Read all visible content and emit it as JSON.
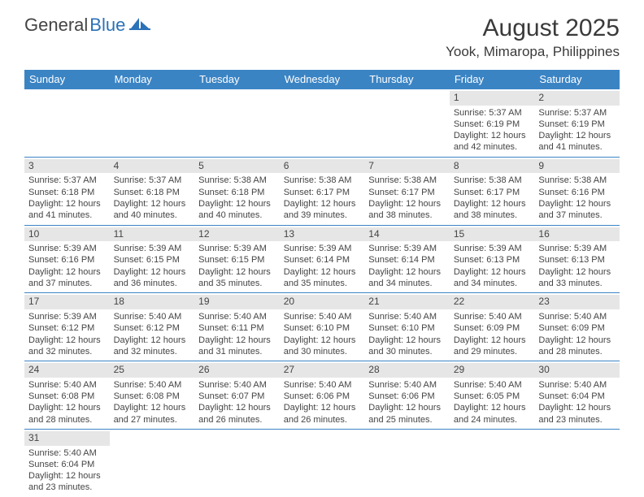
{
  "brand": {
    "part1": "General",
    "part2": "Blue"
  },
  "title": "August 2025",
  "location": "Yook, Mimaropa, Philippines",
  "colors": {
    "header_bg": "#3b84c4",
    "header_fg": "#ffffff",
    "daynum_bg": "#e6e6e6",
    "rule": "#3b84c4",
    "text": "#404040"
  },
  "day_names": [
    "Sunday",
    "Monday",
    "Tuesday",
    "Wednesday",
    "Thursday",
    "Friday",
    "Saturday"
  ],
  "weeks": [
    [
      null,
      null,
      null,
      null,
      null,
      {
        "n": "1",
        "sr": "Sunrise: 5:37 AM",
        "ss": "Sunset: 6:19 PM",
        "d1": "Daylight: 12 hours",
        "d2": "and 42 minutes."
      },
      {
        "n": "2",
        "sr": "Sunrise: 5:37 AM",
        "ss": "Sunset: 6:19 PM",
        "d1": "Daylight: 12 hours",
        "d2": "and 41 minutes."
      }
    ],
    [
      {
        "n": "3",
        "sr": "Sunrise: 5:37 AM",
        "ss": "Sunset: 6:18 PM",
        "d1": "Daylight: 12 hours",
        "d2": "and 41 minutes."
      },
      {
        "n": "4",
        "sr": "Sunrise: 5:37 AM",
        "ss": "Sunset: 6:18 PM",
        "d1": "Daylight: 12 hours",
        "d2": "and 40 minutes."
      },
      {
        "n": "5",
        "sr": "Sunrise: 5:38 AM",
        "ss": "Sunset: 6:18 PM",
        "d1": "Daylight: 12 hours",
        "d2": "and 40 minutes."
      },
      {
        "n": "6",
        "sr": "Sunrise: 5:38 AM",
        "ss": "Sunset: 6:17 PM",
        "d1": "Daylight: 12 hours",
        "d2": "and 39 minutes."
      },
      {
        "n": "7",
        "sr": "Sunrise: 5:38 AM",
        "ss": "Sunset: 6:17 PM",
        "d1": "Daylight: 12 hours",
        "d2": "and 38 minutes."
      },
      {
        "n": "8",
        "sr": "Sunrise: 5:38 AM",
        "ss": "Sunset: 6:17 PM",
        "d1": "Daylight: 12 hours",
        "d2": "and 38 minutes."
      },
      {
        "n": "9",
        "sr": "Sunrise: 5:38 AM",
        "ss": "Sunset: 6:16 PM",
        "d1": "Daylight: 12 hours",
        "d2": "and 37 minutes."
      }
    ],
    [
      {
        "n": "10",
        "sr": "Sunrise: 5:39 AM",
        "ss": "Sunset: 6:16 PM",
        "d1": "Daylight: 12 hours",
        "d2": "and 37 minutes."
      },
      {
        "n": "11",
        "sr": "Sunrise: 5:39 AM",
        "ss": "Sunset: 6:15 PM",
        "d1": "Daylight: 12 hours",
        "d2": "and 36 minutes."
      },
      {
        "n": "12",
        "sr": "Sunrise: 5:39 AM",
        "ss": "Sunset: 6:15 PM",
        "d1": "Daylight: 12 hours",
        "d2": "and 35 minutes."
      },
      {
        "n": "13",
        "sr": "Sunrise: 5:39 AM",
        "ss": "Sunset: 6:14 PM",
        "d1": "Daylight: 12 hours",
        "d2": "and 35 minutes."
      },
      {
        "n": "14",
        "sr": "Sunrise: 5:39 AM",
        "ss": "Sunset: 6:14 PM",
        "d1": "Daylight: 12 hours",
        "d2": "and 34 minutes."
      },
      {
        "n": "15",
        "sr": "Sunrise: 5:39 AM",
        "ss": "Sunset: 6:13 PM",
        "d1": "Daylight: 12 hours",
        "d2": "and 34 minutes."
      },
      {
        "n": "16",
        "sr": "Sunrise: 5:39 AM",
        "ss": "Sunset: 6:13 PM",
        "d1": "Daylight: 12 hours",
        "d2": "and 33 minutes."
      }
    ],
    [
      {
        "n": "17",
        "sr": "Sunrise: 5:39 AM",
        "ss": "Sunset: 6:12 PM",
        "d1": "Daylight: 12 hours",
        "d2": "and 32 minutes."
      },
      {
        "n": "18",
        "sr": "Sunrise: 5:40 AM",
        "ss": "Sunset: 6:12 PM",
        "d1": "Daylight: 12 hours",
        "d2": "and 32 minutes."
      },
      {
        "n": "19",
        "sr": "Sunrise: 5:40 AM",
        "ss": "Sunset: 6:11 PM",
        "d1": "Daylight: 12 hours",
        "d2": "and 31 minutes."
      },
      {
        "n": "20",
        "sr": "Sunrise: 5:40 AM",
        "ss": "Sunset: 6:10 PM",
        "d1": "Daylight: 12 hours",
        "d2": "and 30 minutes."
      },
      {
        "n": "21",
        "sr": "Sunrise: 5:40 AM",
        "ss": "Sunset: 6:10 PM",
        "d1": "Daylight: 12 hours",
        "d2": "and 30 minutes."
      },
      {
        "n": "22",
        "sr": "Sunrise: 5:40 AM",
        "ss": "Sunset: 6:09 PM",
        "d1": "Daylight: 12 hours",
        "d2": "and 29 minutes."
      },
      {
        "n": "23",
        "sr": "Sunrise: 5:40 AM",
        "ss": "Sunset: 6:09 PM",
        "d1": "Daylight: 12 hours",
        "d2": "and 28 minutes."
      }
    ],
    [
      {
        "n": "24",
        "sr": "Sunrise: 5:40 AM",
        "ss": "Sunset: 6:08 PM",
        "d1": "Daylight: 12 hours",
        "d2": "and 28 minutes."
      },
      {
        "n": "25",
        "sr": "Sunrise: 5:40 AM",
        "ss": "Sunset: 6:08 PM",
        "d1": "Daylight: 12 hours",
        "d2": "and 27 minutes."
      },
      {
        "n": "26",
        "sr": "Sunrise: 5:40 AM",
        "ss": "Sunset: 6:07 PM",
        "d1": "Daylight: 12 hours",
        "d2": "and 26 minutes."
      },
      {
        "n": "27",
        "sr": "Sunrise: 5:40 AM",
        "ss": "Sunset: 6:06 PM",
        "d1": "Daylight: 12 hours",
        "d2": "and 26 minutes."
      },
      {
        "n": "28",
        "sr": "Sunrise: 5:40 AM",
        "ss": "Sunset: 6:06 PM",
        "d1": "Daylight: 12 hours",
        "d2": "and 25 minutes."
      },
      {
        "n": "29",
        "sr": "Sunrise: 5:40 AM",
        "ss": "Sunset: 6:05 PM",
        "d1": "Daylight: 12 hours",
        "d2": "and 24 minutes."
      },
      {
        "n": "30",
        "sr": "Sunrise: 5:40 AM",
        "ss": "Sunset: 6:04 PM",
        "d1": "Daylight: 12 hours",
        "d2": "and 23 minutes."
      }
    ],
    [
      {
        "n": "31",
        "sr": "Sunrise: 5:40 AM",
        "ss": "Sunset: 6:04 PM",
        "d1": "Daylight: 12 hours",
        "d2": "and 23 minutes."
      },
      null,
      null,
      null,
      null,
      null,
      null
    ]
  ]
}
